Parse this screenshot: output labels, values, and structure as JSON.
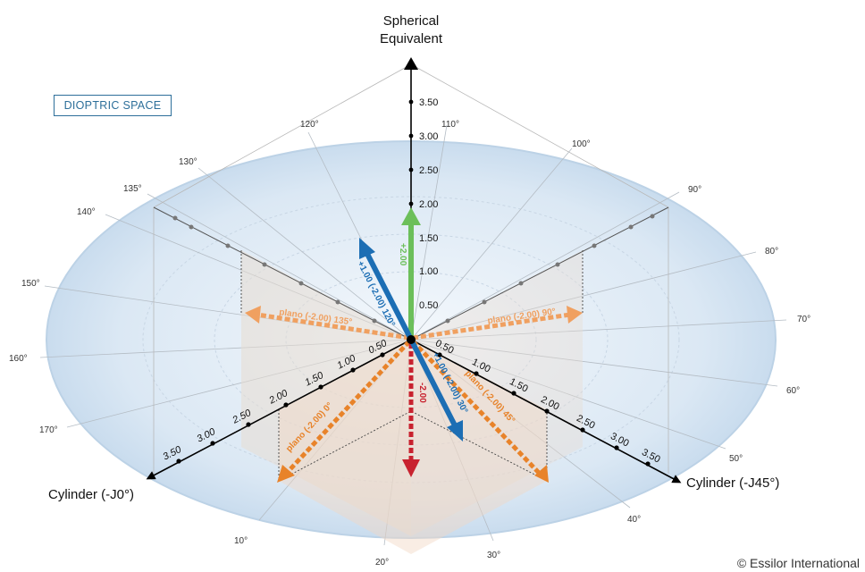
{
  "badge": "DIOPTRIC SPACE",
  "credit": "© Essilor International",
  "axes": {
    "vertical_title_line1": "Spherical",
    "vertical_title_line2": "Equivalent",
    "left_title": "Cylinder (-J0°)",
    "right_title": "Cylinder (-J45°)"
  },
  "vertical_ticks": [
    "0.50",
    "1.00",
    "1.50",
    "2.00",
    "2.50",
    "3.00",
    "3.50"
  ],
  "left_ticks": [
    "0.50",
    "1.00",
    "1.50",
    "2.00",
    "2.50",
    "3.00",
    "3.50"
  ],
  "right_ticks": [
    "0.50",
    "1.00",
    "1.50",
    "2.00",
    "2.50",
    "3.00",
    "3.50"
  ],
  "degrees": [
    "10°",
    "20°",
    "30°",
    "40°",
    "50°",
    "60°",
    "70°",
    "80°",
    "90°",
    "100°",
    "110°",
    "120°",
    "130°",
    "135°",
    "140°",
    "150°",
    "160°",
    "170°"
  ],
  "vectors": {
    "sph_plus": {
      "label": "+2.00",
      "color": "#6cbf5a"
    },
    "sph_minus": {
      "label": "-2.00",
      "color": "#c8222f"
    },
    "oblique_120": {
      "label": "+1.00 (-2.00) 120°",
      "color": "#1c6eb4"
    },
    "oblique_30": {
      "label": "+1.00 (-2.00) 30°",
      "color": "#1c6eb4"
    },
    "plano_0": {
      "label": "plano (-2.00) 0°",
      "color": "#e8832a"
    },
    "plano_45": {
      "label": "plano (-2.00) 45°",
      "color": "#e8832a"
    },
    "plano_90": {
      "label": "plano (-2.00) 90°",
      "color": "#f0a060"
    },
    "plano_135": {
      "label": "plano (-2.00) 135°",
      "color": "#f0a060"
    }
  }
}
